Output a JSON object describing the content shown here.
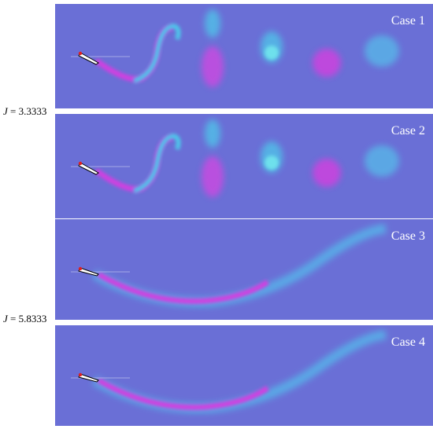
{
  "panels": [
    {
      "label": "Case 1"
    },
    {
      "label": "Case 2"
    },
    {
      "label": "Case 3"
    },
    {
      "label": "Case 4"
    }
  ],
  "j_labels": [
    {
      "symbol": "J",
      "value": "= 3.3333"
    },
    {
      "symbol": "J",
      "value": "= 5.8333"
    }
  ]
}
